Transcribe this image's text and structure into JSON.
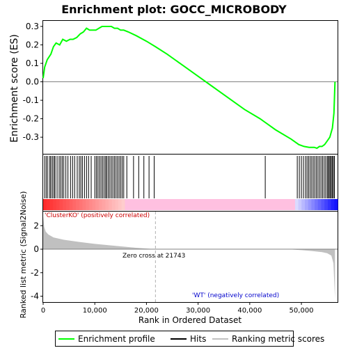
{
  "chart_data": {
    "type": "line",
    "title": "Enrichment plot: GOCC_MICROBODY",
    "top_panel": {
      "ylabel": "Enrichment score (ES)",
      "ylim": [
        -0.39,
        0.33
      ],
      "yticks": [
        0.3,
        0.2,
        0.1,
        0.0,
        -0.1,
        -0.2,
        -0.3
      ],
      "ytick_labels": [
        "0.3",
        "0.2",
        "0.1",
        "0.0",
        "-0.1",
        "-0.2",
        "-0.3"
      ],
      "series": [
        {
          "name": "Enrichment profile",
          "color": "#00ff00",
          "x": [
            0,
            300,
            800,
            1500,
            2000,
            2500,
            3200,
            3800,
            4500,
            5200,
            5800,
            6500,
            7200,
            7800,
            8400,
            9000,
            9600,
            10200,
            10800,
            11400,
            12000,
            12600,
            13200,
            13800,
            14400,
            15000,
            15600,
            16500,
            18000,
            20000,
            21743,
            24000,
            27000,
            30000,
            33000,
            36000,
            39000,
            42000,
            45000,
            48000,
            49500,
            50500,
            51500,
            52500,
            53000,
            53500,
            54000,
            54500,
            55000,
            55500,
            56000,
            56300,
            56500
          ],
          "y": [
            0.02,
            0.08,
            0.12,
            0.15,
            0.19,
            0.21,
            0.2,
            0.23,
            0.22,
            0.23,
            0.23,
            0.24,
            0.26,
            0.27,
            0.29,
            0.28,
            0.28,
            0.28,
            0.29,
            0.3,
            0.3,
            0.3,
            0.3,
            0.29,
            0.29,
            0.28,
            0.28,
            0.27,
            0.25,
            0.22,
            0.19,
            0.15,
            0.09,
            0.03,
            -0.03,
            -0.09,
            -0.15,
            -0.2,
            -0.26,
            -0.31,
            -0.34,
            -0.35,
            -0.355,
            -0.355,
            -0.36,
            -0.35,
            -0.35,
            -0.34,
            -0.32,
            -0.3,
            -0.25,
            -0.17,
            0.0
          ]
        }
      ]
    },
    "hits_panel": {
      "hit_positions": [
        300,
        600,
        900,
        1300,
        1500,
        1800,
        2100,
        2300,
        2700,
        3100,
        3400,
        3700,
        4000,
        4400,
        4800,
        5300,
        5700,
        6100,
        6600,
        7000,
        7300,
        7600,
        8000,
        8400,
        8800,
        9300,
        10000,
        10300,
        10600,
        10900,
        11200,
        11500,
        11800,
        12100,
        12300,
        12600,
        12900,
        13200,
        13500,
        13800,
        14100,
        14400,
        14700,
        15000,
        15300,
        15600,
        16200,
        17500,
        18500,
        19500,
        20500,
        21500,
        43000,
        49200,
        49600,
        50000,
        50400,
        50800,
        51100,
        51400,
        51700,
        52000,
        52300,
        52600,
        52900,
        53200,
        53500,
        53800,
        54100,
        54400,
        54700,
        55000,
        55200,
        55400,
        55600,
        55800,
        56000,
        56200,
        56400
      ]
    },
    "rank_panel": {
      "ylabel": "Ranked list metric (Signal2Noise)",
      "ylim": [
        -4.5,
        3.2
      ],
      "yticks": [
        2,
        0,
        -2,
        -4
      ],
      "ytick_labels": [
        "2",
        "0",
        "-2",
        "-4"
      ],
      "zero_cross": 21743,
      "annotation_pos": "'ClusterKO' (positively correlated)",
      "annotation_neg": "'WT' (negatively correlated)",
      "annotation_zero": "Zero cross at 21743",
      "profile_x": [
        0,
        200,
        500,
        1000,
        2000,
        4000,
        7000,
        10000,
        14000,
        18000,
        21743,
        25000,
        30000,
        40000,
        48000,
        50000,
        52000,
        54000,
        55000,
        55800,
        56200,
        56500
      ],
      "profile_y": [
        2.8,
        1.9,
        1.5,
        1.25,
        1.0,
        0.8,
        0.62,
        0.45,
        0.28,
        0.12,
        0.0,
        0.0,
        0.0,
        0.0,
        -0.02,
        -0.08,
        -0.15,
        -0.25,
        -0.35,
        -0.55,
        -1.2,
        -4.2
      ]
    },
    "xlabel": "Rank in Ordered Dataset",
    "xlim": [
      0,
      57000
    ],
    "xticks": [
      0,
      10000,
      20000,
      30000,
      40000,
      50000
    ],
    "xtick_labels": [
      "0",
      "10,000",
      "20,000",
      "30,000",
      "40,000",
      "50,000"
    ],
    "legend": {
      "placement": "bottom",
      "items": [
        "Enrichment profile",
        "Hits",
        "Ranking metric scores"
      ]
    }
  },
  "colors": {
    "profile": "#00ff00",
    "hits": "#000000",
    "metric_fill": "#c0c0c0",
    "pos_band": "#ff0000",
    "neg_band": "#0000ff"
  }
}
